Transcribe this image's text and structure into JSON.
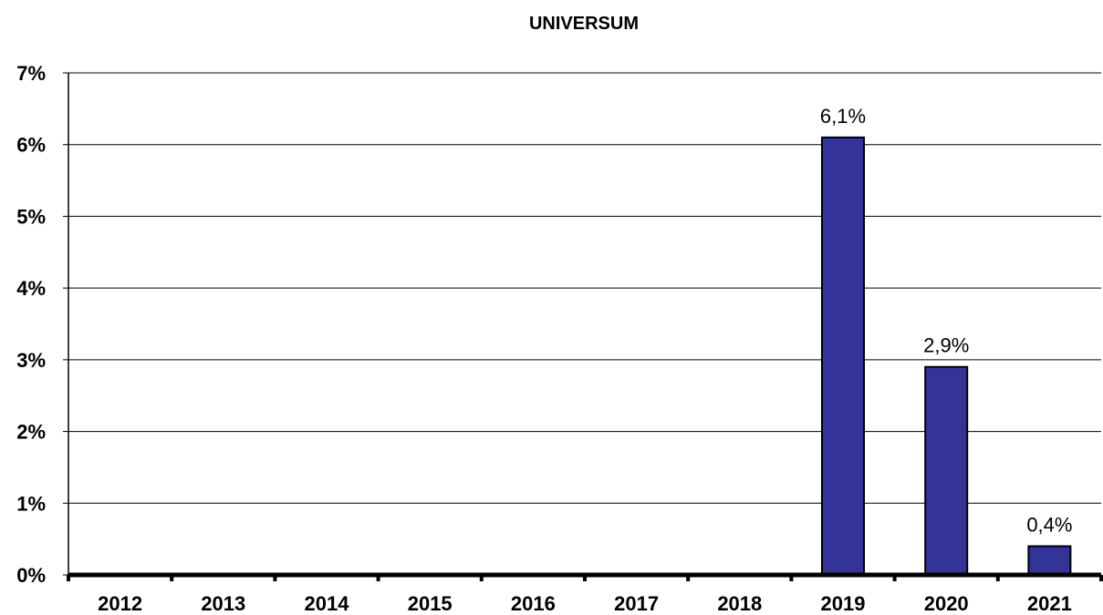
{
  "chart_data": {
    "type": "bar",
    "title": "UNIVERSUM",
    "xlabel": "",
    "ylabel": "",
    "categories": [
      "2012",
      "2013",
      "2014",
      "2015",
      "2016",
      "2017",
      "2018",
      "2019",
      "2020",
      "2021"
    ],
    "values": [
      0,
      0,
      0,
      0,
      0,
      0,
      0,
      6.1,
      2.9,
      0.4
    ],
    "data_labels": [
      "",
      "",
      "",
      "",
      "",
      "",
      "",
      "6,1%",
      "2,9%",
      "0,4%"
    ],
    "ylim": [
      0,
      7
    ],
    "yticks": [
      0,
      1,
      2,
      3,
      4,
      5,
      6,
      7
    ],
    "ytick_labels": [
      "0%",
      "1%",
      "2%",
      "3%",
      "4%",
      "5%",
      "6%",
      "7%"
    ],
    "grid": true,
    "legend": "none",
    "bar_color": "#333399"
  }
}
